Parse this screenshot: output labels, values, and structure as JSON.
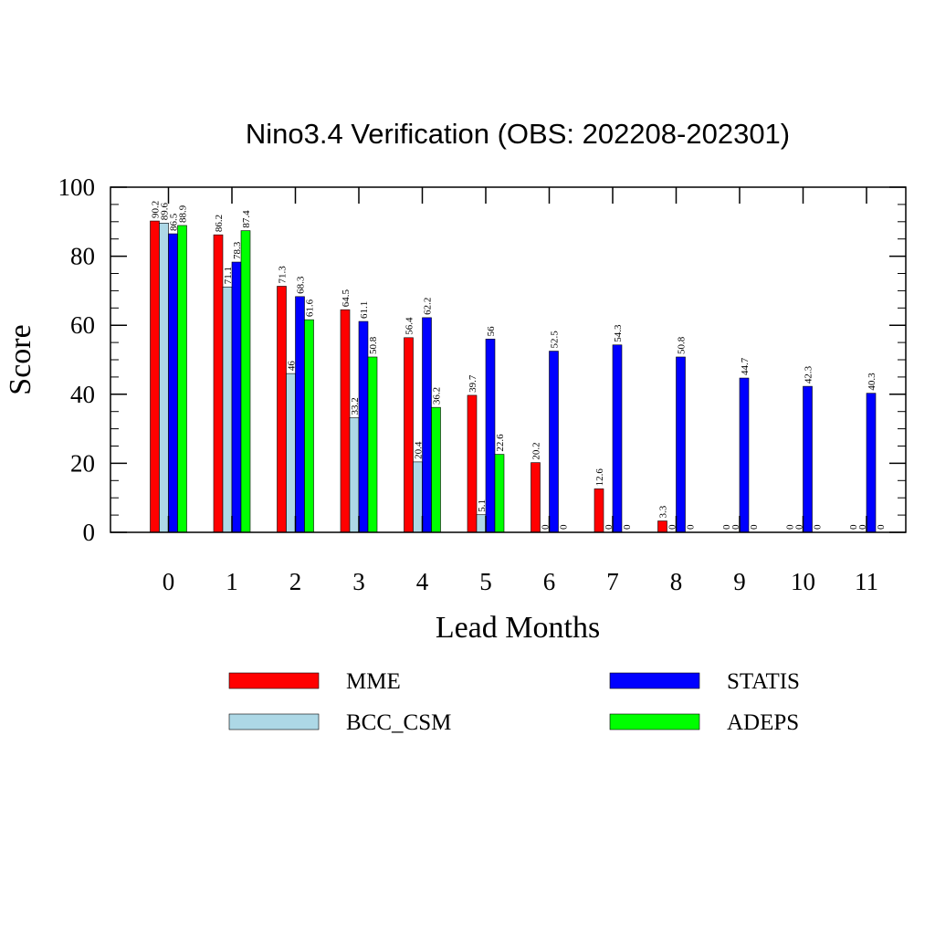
{
  "chart_data": {
    "type": "bar",
    "title": "Nino3.4 Verification (OBS: 202208-202301)",
    "xlabel": "Lead Months",
    "ylabel": "Score",
    "categories": [
      "0",
      "1",
      "2",
      "3",
      "4",
      "5",
      "6",
      "7",
      "8",
      "9",
      "10",
      "11"
    ],
    "ylim": [
      0,
      100
    ],
    "yticks": [
      "0",
      "20",
      "40",
      "60",
      "80",
      "100"
    ],
    "grid": false,
    "legend_position": "bottom",
    "series": [
      {
        "name": "MME",
        "color": "#ff0000",
        "values": [
          90.2,
          86.2,
          71.3,
          64.5,
          56.4,
          39.7,
          20.2,
          12.6,
          3.3,
          0,
          0,
          0
        ],
        "labels": [
          "90.2",
          "86.2",
          "71.3",
          "64.5",
          "56.4",
          "39.7",
          "20.2",
          "12.6",
          "3.3",
          "0",
          "0",
          "0"
        ]
      },
      {
        "name": "BCC_CSM",
        "color": "#add8e6",
        "values": [
          89.6,
          71.1,
          46,
          33.2,
          20.4,
          5.1,
          0,
          0,
          0,
          0,
          0,
          0
        ],
        "labels": [
          "89.6",
          "71.1",
          "46",
          "33.2",
          "20.4",
          "5.1",
          "0",
          "0",
          "0",
          "0",
          "0",
          "0"
        ]
      },
      {
        "name": "STATIS",
        "color": "#0000ff",
        "values": [
          86.5,
          78.3,
          68.3,
          61.1,
          62.2,
          56,
          52.5,
          54.3,
          50.8,
          44.7,
          42.3,
          40.3
        ],
        "labels": [
          "86.5",
          "78.3",
          "68.3",
          "61.1",
          "62.2",
          "56",
          "52.5",
          "54.3",
          "50.8",
          "44.7",
          "42.3",
          "40.3"
        ]
      },
      {
        "name": "ADEPS",
        "color": "#00ff00",
        "values": [
          88.9,
          87.4,
          61.6,
          50.8,
          36.2,
          22.6,
          0,
          0,
          0,
          0,
          0,
          0
        ],
        "labels": [
          "88.9",
          "87.4",
          "61.6",
          "50.8",
          "36.2",
          "22.6",
          "0",
          "0",
          "0",
          "0",
          "0",
          "0"
        ]
      }
    ]
  }
}
